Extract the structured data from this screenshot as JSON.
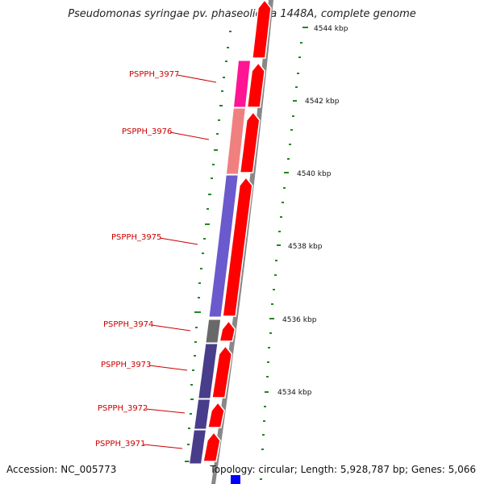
{
  "title": "Pseudomonas syringae pv. phaseolicola 1448A, complete genome",
  "footer": {
    "accession": "Accession: NC_005773",
    "summary": "Topology: circular; Length: 5,928,787 bp; Genes: 5,066"
  },
  "colors": {
    "forward_cds": "#ff0000",
    "backbone": "#888888",
    "gc_ticks": "#228822",
    "gene_label": "#cc0000",
    "bottom_feature": "#0000ff"
  },
  "kbp_labels": [
    "4544 kbp",
    "4542 kbp",
    "4540 kbp",
    "4538 kbp",
    "4536 kbp",
    "4534 kbp"
  ],
  "genes": [
    {
      "id": "PSPPH_3977",
      "color": "#ff1493"
    },
    {
      "id": "PSPPH_3976",
      "color": "#f08080"
    },
    {
      "id": "PSPPH_3975",
      "color": "#6a5acd"
    },
    {
      "id": "PSPPH_3974",
      "color": "#696969"
    },
    {
      "id": "PSPPH_3973",
      "color": "#483d8b"
    },
    {
      "id": "PSPPH_3972",
      "color": "#483d8b"
    },
    {
      "id": "PSPPH_3971",
      "color": "#483d8b"
    }
  ]
}
